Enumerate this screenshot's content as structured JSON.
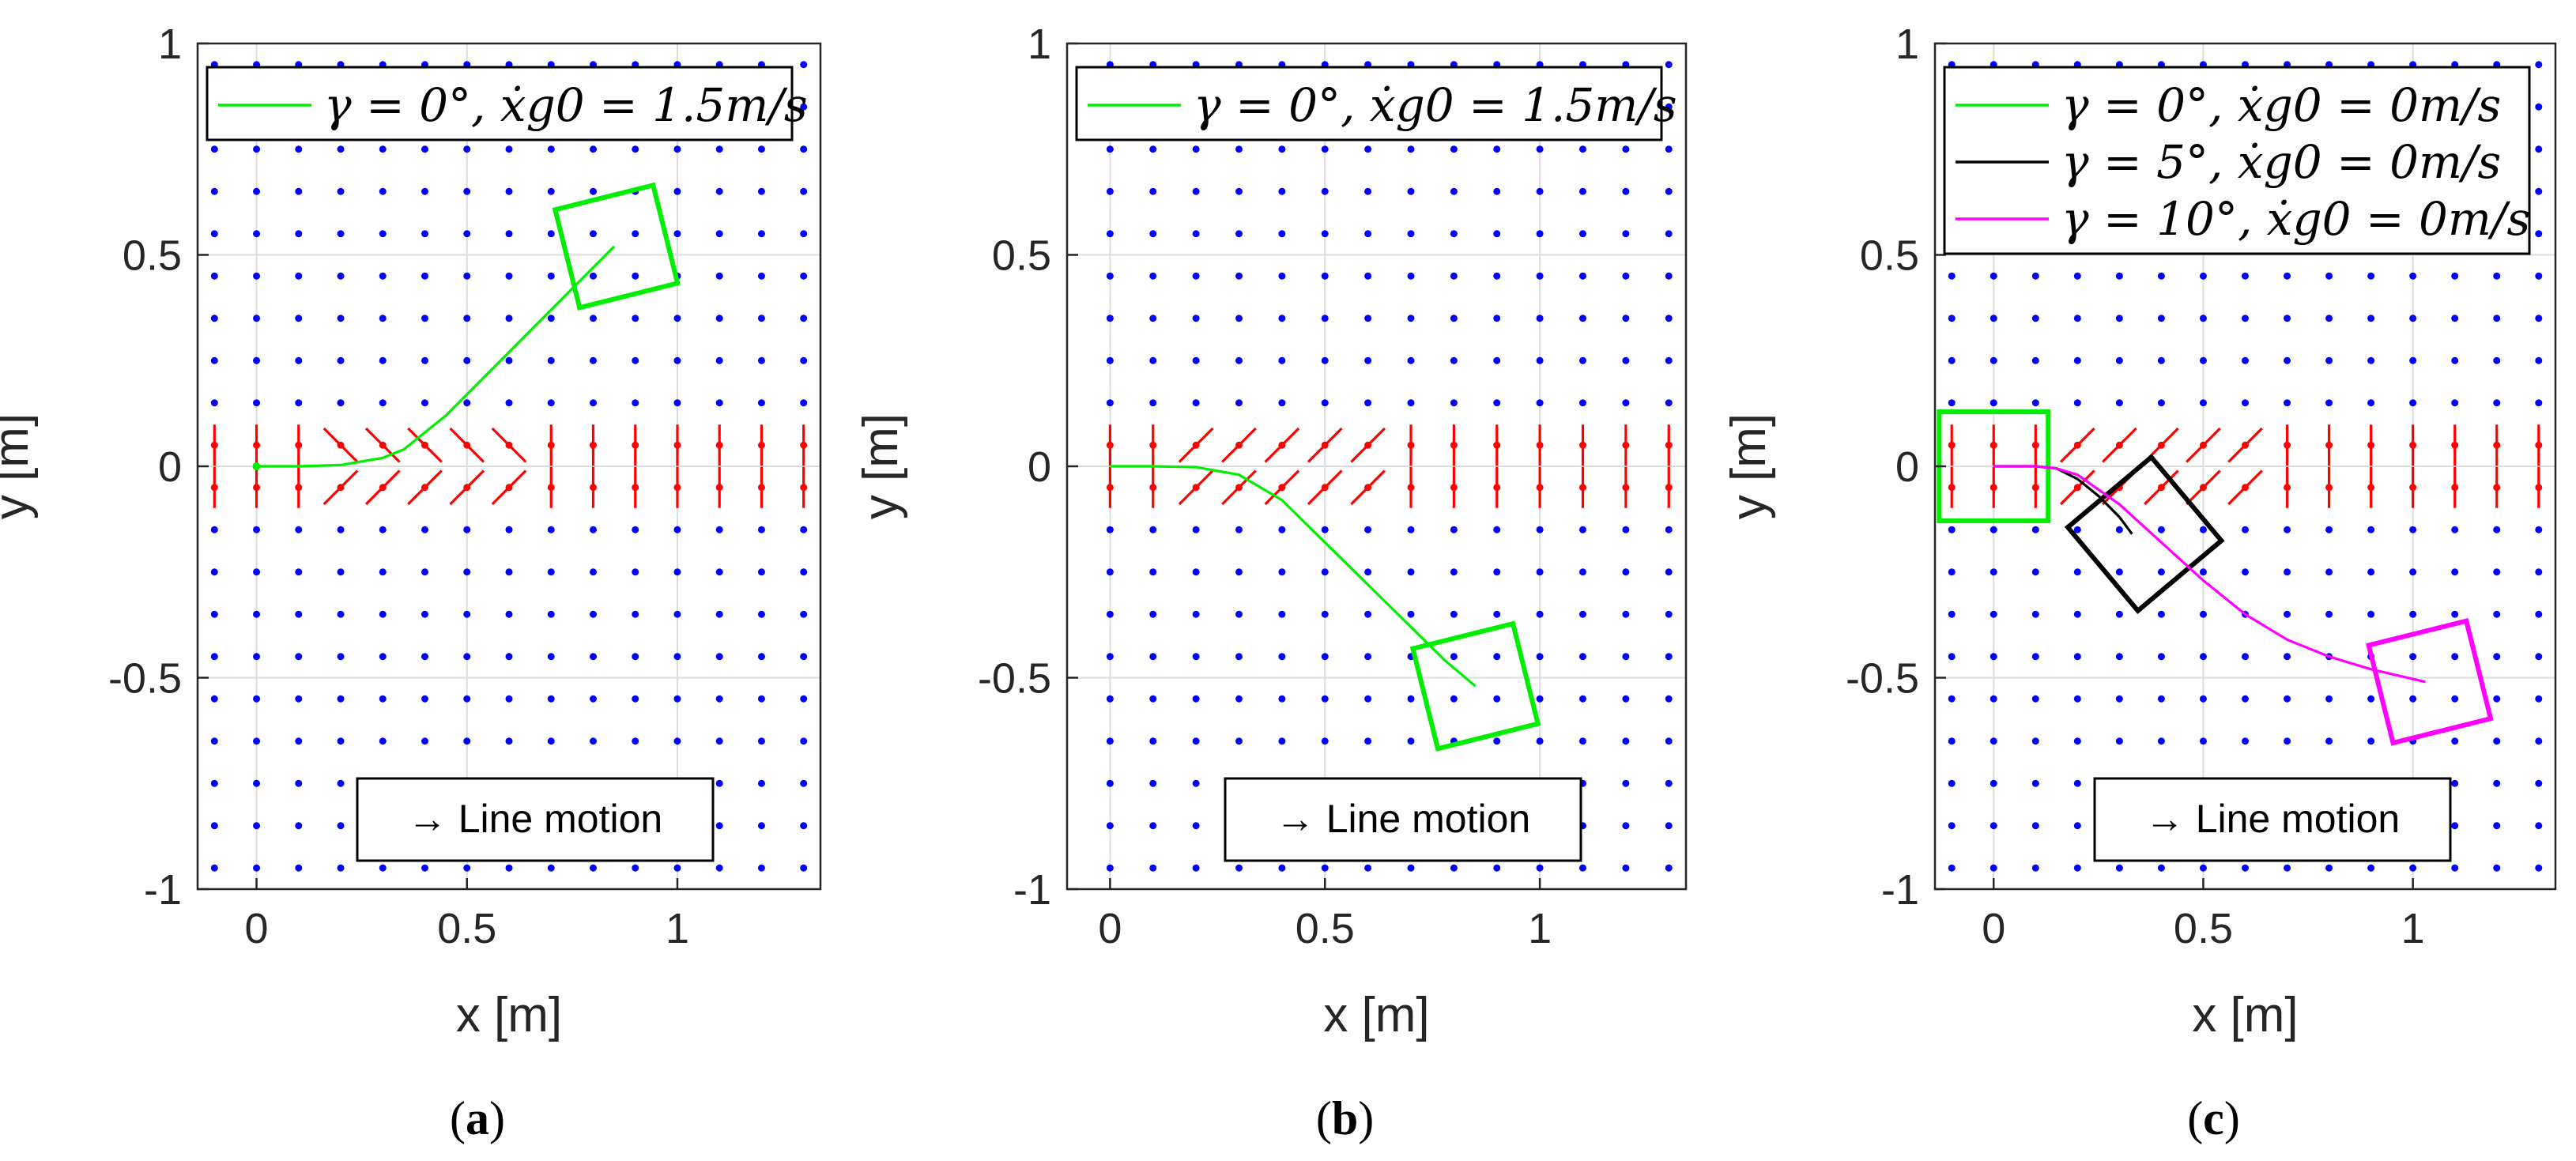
{
  "figure": {
    "x_label": "x [m]",
    "y_label": "y [m]",
    "colors": {
      "field_dot": "#0000ff",
      "field_arrow": "#ff0000",
      "green": "#00ee00",
      "black": "#000000",
      "magenta": "#ff00ff",
      "grid": "#dcdcdc"
    }
  },
  "chart_data": [
    {
      "type": "line",
      "caption_label": "a",
      "xlabel": "x [m]",
      "ylabel": "y [m]",
      "xlim": [
        -0.14,
        1.34
      ],
      "ylim": [
        -1,
        1
      ],
      "xticks": [
        0,
        0.5,
        1
      ],
      "xtick_labels": [
        "0",
        "0.5",
        "1"
      ],
      "yticks": [
        -1,
        -0.5,
        0,
        0.5,
        1
      ],
      "ytick_labels": [
        "-1",
        "-0.5",
        "0",
        "0.5",
        "1"
      ],
      "grid": true,
      "legend_location": "top-left",
      "field_mode": "diverge",
      "annotation": "→ Line motion",
      "series": [
        {
          "name": "γ = 0°, ẋg0 = 1.5m/s",
          "color": "#00ee00",
          "start_marker": true,
          "x": [
            0,
            0.1,
            0.2,
            0.3,
            0.35,
            0.45,
            0.55,
            0.65,
            0.75,
            0.85
          ],
          "y": [
            0,
            0,
            0.003,
            0.02,
            0.04,
            0.12,
            0.22,
            0.32,
            0.42,
            0.52
          ],
          "final_box": {
            "cx": 0.855,
            "cy": 0.52,
            "half": 0.12,
            "angle_deg": 14
          }
        }
      ]
    },
    {
      "type": "line",
      "caption_label": "b",
      "xlabel": "x [m]",
      "ylabel": "y [m]",
      "xlim": [
        -0.1,
        1.34
      ],
      "ylim": [
        -1,
        1
      ],
      "xticks": [
        0,
        0.5,
        1
      ],
      "xtick_labels": [
        "0",
        "0.5",
        "1"
      ],
      "yticks": [
        -1,
        -0.5,
        0,
        0.5,
        1
      ],
      "ytick_labels": [
        "-1",
        "-0.5",
        "0",
        "0.5",
        "1"
      ],
      "grid": true,
      "legend_location": "top-left",
      "field_mode": "slant",
      "annotation": "→ Line motion",
      "series": [
        {
          "name": "γ = 0°, ẋg0 = 1.5m/s",
          "color": "#00ee00",
          "start_marker": false,
          "x": [
            0,
            0.1,
            0.2,
            0.3,
            0.4,
            0.5,
            0.6,
            0.7,
            0.78,
            0.85
          ],
          "y": [
            0,
            0,
            -0.002,
            -0.02,
            -0.08,
            -0.18,
            -0.28,
            -0.38,
            -0.46,
            -0.52
          ],
          "final_box": {
            "cx": 0.85,
            "cy": -0.52,
            "half": 0.12,
            "angle_deg": 14
          }
        }
      ]
    },
    {
      "type": "line",
      "caption_label": "c",
      "xlabel": "x [m]",
      "ylabel": "y [m]",
      "xlim": [
        -0.14,
        1.34
      ],
      "ylim": [
        -1,
        1
      ],
      "xticks": [
        0,
        0.5,
        1
      ],
      "xtick_labels": [
        "0",
        "0.5",
        "1"
      ],
      "yticks": [
        -1,
        -0.5,
        0,
        0.5,
        1
      ],
      "ytick_labels": [
        "-1",
        "-0.5",
        "0",
        "0.5",
        "1"
      ],
      "grid": true,
      "legend_location": "top-left",
      "field_mode": "slant",
      "annotation": "→ Line motion",
      "series": [
        {
          "name": "γ = 0°, ẋg0 = 0m/s",
          "color": "#00ee00",
          "start_marker": false,
          "x": [
            0,
            0.005
          ],
          "y": [
            0,
            0
          ],
          "final_box": {
            "cx": 0.0,
            "cy": 0.0,
            "half": 0.13,
            "angle_deg": 0
          }
        },
        {
          "name": "γ = 5°, ẋg0 = 0m/s",
          "color": "#000000",
          "start_marker": false,
          "x": [
            0,
            0.1,
            0.15,
            0.2,
            0.25,
            0.3,
            0.33
          ],
          "y": [
            0,
            0,
            -0.005,
            -0.03,
            -0.07,
            -0.12,
            -0.16
          ],
          "final_box": {
            "cx": 0.36,
            "cy": -0.16,
            "half": 0.13,
            "angle_deg": 40
          }
        },
        {
          "name": "γ = 10°, ẋg0 = 0m/s",
          "color": "#ff00ff",
          "start_marker": false,
          "x": [
            0,
            0.1,
            0.15,
            0.2,
            0.3,
            0.4,
            0.5,
            0.6,
            0.7,
            0.8,
            0.9,
            1.03
          ],
          "y": [
            0,
            0,
            -0.005,
            -0.02,
            -0.09,
            -0.18,
            -0.27,
            -0.35,
            -0.41,
            -0.45,
            -0.48,
            -0.51
          ],
          "final_box": {
            "cx": 1.04,
            "cy": -0.51,
            "half": 0.12,
            "angle_deg": 14
          }
        }
      ]
    }
  ]
}
